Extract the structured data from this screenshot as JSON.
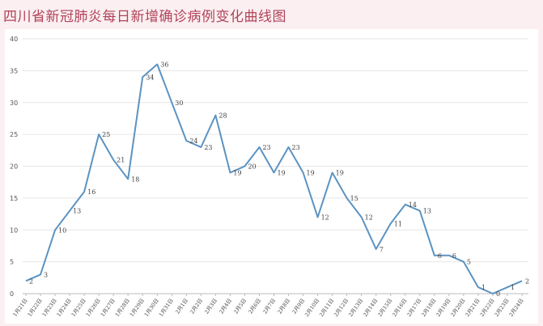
{
  "title": "四川省新冠肺炎每日新增确诊病例变化曲线图",
  "chart_data": {
    "type": "line",
    "title": "四川省新冠肺炎每日新增确诊病例变化曲线图",
    "xlabel": "",
    "ylabel": "",
    "ylim": [
      0,
      40
    ],
    "yticks": [
      0,
      5,
      10,
      15,
      20,
      25,
      30,
      35,
      40
    ],
    "grid": true,
    "legend": "none",
    "line_color": "#5b93c2",
    "categories": [
      "1月21日",
      "1月22日",
      "1月23日",
      "1月24日",
      "1月25日",
      "1月26日",
      "1月27日",
      "1月28日",
      "1月29日",
      "1月30日",
      "1月31日",
      "2月1日",
      "2月2日",
      "2月3日",
      "2月4日",
      "2月5日",
      "2月6日",
      "2月7日",
      "2月8日",
      "2月9日",
      "2月10日",
      "2月11日",
      "2月12日",
      "2月13日",
      "2月14日",
      "2月15日",
      "2月16日",
      "2月17日",
      "2月18日",
      "2月19日",
      "2月20日",
      "2月21日",
      "2月22日",
      "2月23日",
      "2月24日"
    ],
    "values": [
      2,
      3,
      10,
      13,
      16,
      25,
      21,
      18,
      34,
      36,
      30,
      24,
      23,
      28,
      19,
      20,
      23,
      19,
      23,
      19,
      12,
      19,
      15,
      12,
      7,
      11,
      14,
      13,
      6,
      6,
      5,
      1,
      0,
      1,
      2
    ]
  }
}
